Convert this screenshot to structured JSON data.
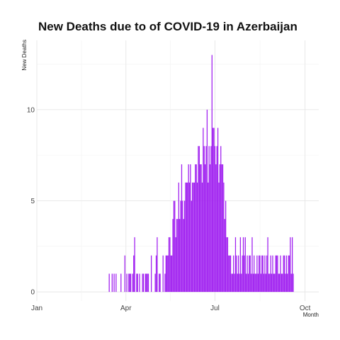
{
  "chart_data": {
    "type": "bar",
    "title": "New Deaths due to of COVID-19 in Azerbaijan",
    "xlabel": "Month",
    "ylabel": "New Deaths",
    "x_ticks": [
      "Jan",
      "Apr",
      "Jul",
      "Oct"
    ],
    "y_ticks": [
      "0",
      "5",
      "10"
    ],
    "ylim": [
      -0.5,
      13.8
    ],
    "xlim": [
      "2020-01-01",
      "2020-10-15"
    ],
    "grid": true,
    "legend": "none",
    "bar_color": "#a020f0",
    "start_date": "2020-03-15",
    "values": [
      1,
      0,
      0,
      1,
      0,
      1,
      0,
      1,
      0,
      0,
      0,
      0,
      1,
      0,
      0,
      0,
      2,
      0,
      1,
      0,
      1,
      1,
      1,
      0,
      1,
      2,
      3,
      0,
      1,
      1,
      0,
      1,
      0,
      0,
      1,
      1,
      0,
      1,
      1,
      1,
      1,
      0,
      0,
      2,
      0,
      0,
      0,
      1,
      2,
      3,
      0,
      1,
      1,
      0,
      0,
      2,
      0,
      1,
      2,
      2,
      2,
      3,
      3,
      2,
      2,
      4,
      5,
      5,
      3,
      4,
      4,
      6,
      4,
      5,
      7,
      5,
      4,
      5,
      6,
      6,
      6,
      7,
      6,
      7,
      5,
      6,
      6,
      6,
      7,
      7,
      6,
      8,
      8,
      7,
      7,
      6,
      9,
      8,
      7,
      8,
      10,
      6,
      8,
      7,
      8,
      13,
      9,
      9,
      8,
      7,
      8,
      9,
      6,
      7,
      8,
      7,
      7,
      6,
      4,
      5,
      3,
      3,
      2,
      2,
      2,
      1,
      1,
      2,
      1,
      3,
      2,
      1,
      2,
      1,
      3,
      1,
      2,
      3,
      2,
      3,
      1,
      2,
      1,
      2,
      2,
      1,
      3,
      1,
      2,
      1,
      1,
      2,
      1,
      2,
      2,
      1,
      2,
      2,
      1,
      2,
      1,
      2,
      3,
      1,
      1,
      2,
      1,
      2,
      1,
      1,
      2,
      2,
      2,
      1,
      1,
      2,
      1,
      1,
      2,
      2,
      1,
      2,
      1,
      2,
      2,
      3,
      1,
      3,
      1
    ]
  }
}
